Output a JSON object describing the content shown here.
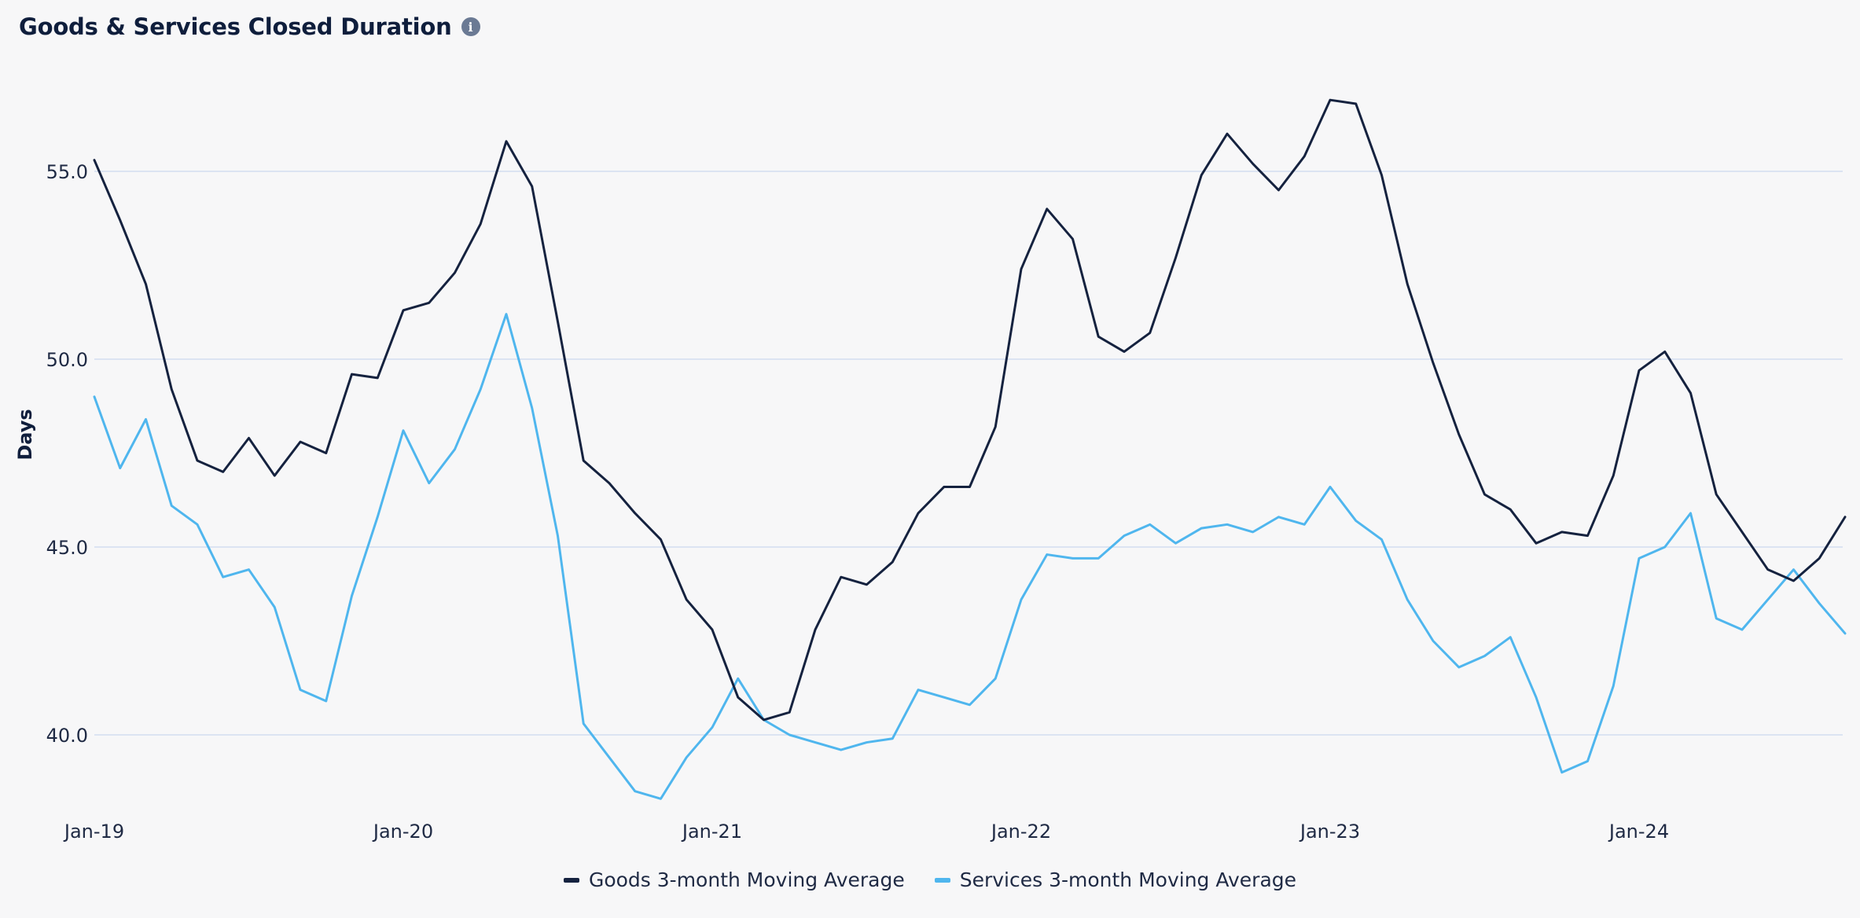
{
  "header": {
    "title": "Goods & Services Closed Duration",
    "info_glyph": "i",
    "info_icon": "info-icon"
  },
  "colors": {
    "goods": "#15223f",
    "services": "#4fb6ee",
    "grid": "#d3ddef",
    "text": "#1f2a44"
  },
  "chart_data": {
    "type": "line",
    "title": "Goods & Services Closed Duration",
    "ylabel": "Days",
    "xlabel": "",
    "x_start": "Jan-19",
    "x_frequency": "monthly",
    "x_ticks": [
      "Jan-19",
      "Jan-20",
      "Jan-21",
      "Jan-22",
      "Jan-23",
      "Jan-24"
    ],
    "y_ticks": [
      "40.0",
      "45.0",
      "50.0",
      "55.0"
    ],
    "ylim": [
      38,
      58
    ],
    "grid": "horizontal",
    "legend_position": "bottom-center",
    "series": [
      {
        "name": "Goods 3-month Moving Average",
        "values": [
          55.3,
          53.7,
          52.0,
          49.2,
          47.3,
          47.0,
          47.9,
          46.9,
          47.8,
          47.5,
          49.6,
          49.5,
          51.3,
          51.5,
          52.3,
          53.6,
          55.8,
          54.6,
          51.0,
          47.3,
          46.7,
          45.9,
          45.2,
          43.6,
          42.8,
          41.0,
          40.4,
          40.6,
          42.8,
          44.2,
          44.0,
          44.6,
          45.9,
          46.6,
          46.6,
          48.2,
          52.4,
          54.0,
          53.2,
          50.6,
          50.2,
          50.7,
          52.7,
          54.9,
          56.0,
          55.2,
          54.5,
          55.4,
          56.9,
          56.8,
          54.9,
          52.0,
          49.9,
          48.0,
          46.4,
          46.0,
          45.1,
          45.4,
          45.3,
          46.9,
          49.7,
          50.2,
          49.1,
          46.4,
          45.4,
          44.4,
          44.1,
          44.7,
          45.8
        ]
      },
      {
        "name": "Services 3-month Moving Average",
        "values": [
          49.0,
          47.1,
          48.4,
          46.1,
          45.6,
          44.2,
          44.4,
          43.4,
          41.2,
          40.9,
          43.7,
          45.8,
          48.1,
          46.7,
          47.6,
          49.2,
          51.2,
          48.7,
          45.3,
          40.3,
          39.4,
          38.5,
          38.3,
          39.4,
          40.2,
          41.5,
          40.4,
          40.0,
          39.8,
          39.6,
          39.8,
          39.9,
          41.2,
          41.0,
          40.8,
          41.5,
          43.6,
          44.8,
          44.7,
          44.7,
          45.3,
          45.6,
          45.1,
          45.5,
          45.6,
          45.4,
          45.8,
          45.6,
          46.6,
          45.7,
          45.2,
          43.6,
          42.5,
          41.8,
          42.1,
          42.6,
          41.0,
          39.0,
          39.3,
          41.3,
          44.7,
          45.0,
          45.9,
          43.1,
          42.8,
          43.6,
          44.4,
          43.5,
          42.7
        ]
      }
    ]
  }
}
